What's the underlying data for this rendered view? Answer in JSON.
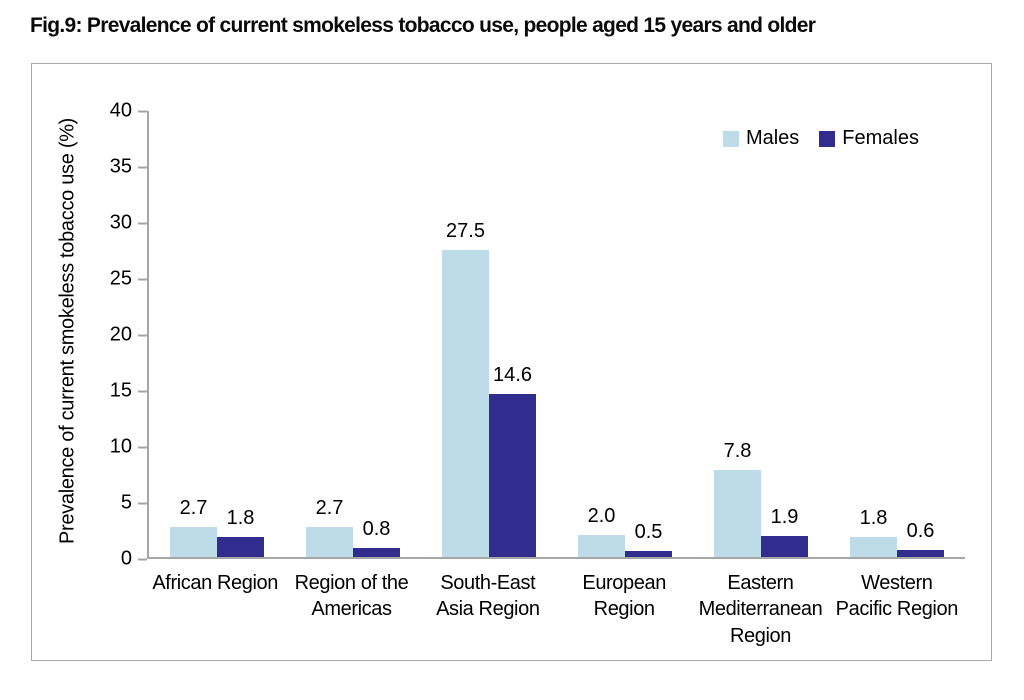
{
  "figure": {
    "title": "Fig.9: Prevalence of current smokeless tobacco use, people aged 15 years and older"
  },
  "chart_data": {
    "type": "bar",
    "title": "Fig.9: Prevalence of current smokeless tobacco use, people aged 15 years and older",
    "categories": [
      "African Region",
      "Region of the Americas",
      "South-East Asia Region",
      "European Region",
      "Eastern Mediterranean Region",
      "Western Pacific Region"
    ],
    "tick_labels": [
      [
        "African Region"
      ],
      [
        "Region of the",
        "Americas"
      ],
      [
        "South-East",
        "Asia Region"
      ],
      [
        "European",
        "Region"
      ],
      [
        "Eastern",
        "Mediterranean",
        "Region"
      ],
      [
        "Western",
        "Pacific Region"
      ]
    ],
    "series": [
      {
        "name": "Males",
        "color": "#BDDBE9",
        "values": [
          2.7,
          2.7,
          27.5,
          2.0,
          7.8,
          1.8
        ]
      },
      {
        "name": "Females",
        "color": "#312D8E",
        "values": [
          1.8,
          0.8,
          14.6,
          0.5,
          1.9,
          0.6
        ]
      }
    ],
    "xlabel": "",
    "ylabel": "Prevalence of current smokeless tobacco use (%)",
    "ylim": [
      0,
      40
    ],
    "ytick_step": 5,
    "grid": false,
    "legend_position": "top-right",
    "data_labels": true,
    "value_decimals": 1,
    "axis_color": "#A6A6A6",
    "frame_border_color": "#A8A8A8"
  }
}
